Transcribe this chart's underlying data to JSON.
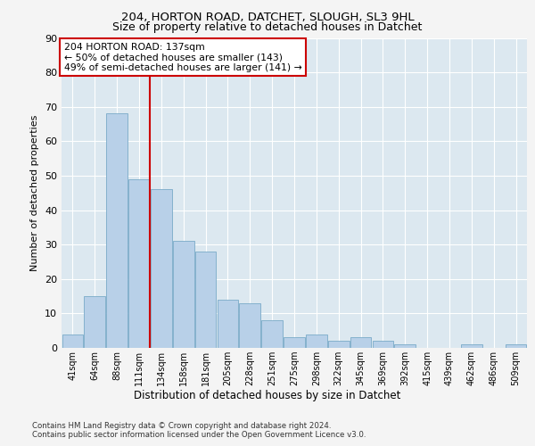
{
  "title1": "204, HORTON ROAD, DATCHET, SLOUGH, SL3 9HL",
  "title2": "Size of property relative to detached houses in Datchet",
  "xlabel": "Distribution of detached houses by size in Datchet",
  "ylabel": "Number of detached properties",
  "footer1": "Contains HM Land Registry data © Crown copyright and database right 2024.",
  "footer2": "Contains public sector information licensed under the Open Government Licence v3.0.",
  "annotation_line1": "204 HORTON ROAD: 137sqm",
  "annotation_line2": "← 50% of detached houses are smaller (143)",
  "annotation_line3": "49% of semi-detached houses are larger (141) →",
  "bar_labels": [
    "41sqm",
    "64sqm",
    "88sqm",
    "111sqm",
    "134sqm",
    "158sqm",
    "181sqm",
    "205sqm",
    "228sqm",
    "251sqm",
    "275sqm",
    "298sqm",
    "322sqm",
    "345sqm",
    "369sqm",
    "392sqm",
    "415sqm",
    "439sqm",
    "462sqm",
    "486sqm",
    "509sqm"
  ],
  "bar_values": [
    4,
    15,
    68,
    49,
    46,
    31,
    28,
    14,
    13,
    8,
    3,
    4,
    2,
    3,
    2,
    1,
    0,
    0,
    1,
    0,
    1
  ],
  "bar_color": "#b8d0e8",
  "bar_edge_color": "#7aaac8",
  "vline_x": 3.5,
  "vline_color": "#cc0000",
  "ylim": [
    0,
    90
  ],
  "yticks": [
    0,
    10,
    20,
    30,
    40,
    50,
    60,
    70,
    80,
    90
  ],
  "fig_bg_color": "#f4f4f4",
  "plot_bg_color": "#dce8f0",
  "annotation_box_color": "#ffffff",
  "annotation_box_edge": "#cc0000"
}
